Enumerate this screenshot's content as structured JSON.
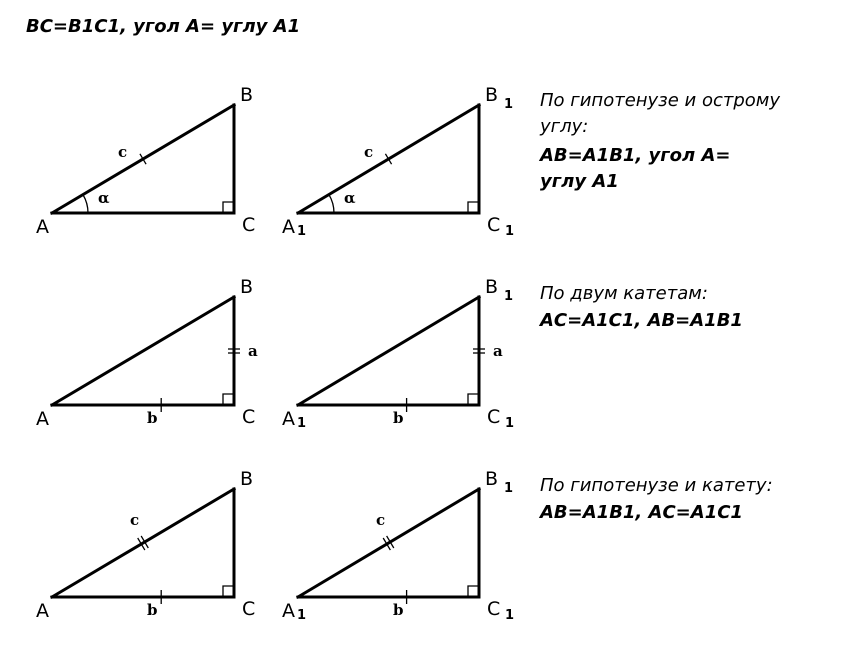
{
  "title": "BC=B1C1,  угол А= углу А1",
  "rows": [
    {
      "caption": [
        "По гипотенузе и острому",
        "углу:"
      ],
      "result": [
        "АВ=А1В1, угол А=",
        "углу А1"
      ]
    },
    {
      "caption": [
        "По двум катетам:"
      ],
      "result": [
        "АС=А1С1, АВ=А1В1"
      ]
    },
    {
      "caption": [
        "По гипотенузе и катету:"
      ],
      "result": [
        "АВ=А1В1, АС=А1С1"
      ]
    }
  ],
  "vertices": {
    "A": "A",
    "B": "B",
    "C": "C",
    "sub": "1"
  },
  "sides": {
    "hyp": "c",
    "leg_a": "a",
    "leg_b": "b",
    "angle": "α"
  }
}
